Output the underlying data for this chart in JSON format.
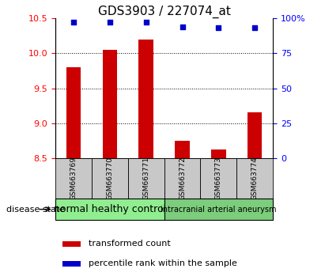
{
  "title": "GDS3903 / 227074_at",
  "samples": [
    "GSM663769",
    "GSM663770",
    "GSM663771",
    "GSM663772",
    "GSM663773",
    "GSM663774"
  ],
  "bar_values": [
    9.8,
    10.05,
    10.2,
    8.75,
    8.62,
    9.15
  ],
  "percentile_values": [
    97,
    97,
    97,
    94,
    93,
    93
  ],
  "bar_bottom": 8.5,
  "ylim_left": [
    8.5,
    10.5
  ],
  "ylim_right": [
    0,
    100
  ],
  "yticks_left": [
    8.5,
    9.0,
    9.5,
    10.0,
    10.5
  ],
  "yticks_right": [
    0,
    25,
    50,
    75,
    100
  ],
  "bar_color": "#cc0000",
  "dot_color": "#0000cc",
  "grid_color": "#000000",
  "groups": [
    {
      "label": "normal healthy control",
      "samples_count": 3,
      "color": "#90ee90",
      "fontsize": 9
    },
    {
      "label": "intracranial arterial aneurysm",
      "samples_count": 3,
      "color": "#7ccd7c",
      "fontsize": 7
    }
  ],
  "disease_state_label": "disease state",
  "legend_bar_label": "transformed count",
  "legend_dot_label": "percentile rank within the sample",
  "sample_box_color": "#c8c8c8",
  "background_color": "#ffffff",
  "title_fontsize": 11,
  "tick_fontsize": 8,
  "label_fontsize": 8,
  "bar_width": 0.4
}
